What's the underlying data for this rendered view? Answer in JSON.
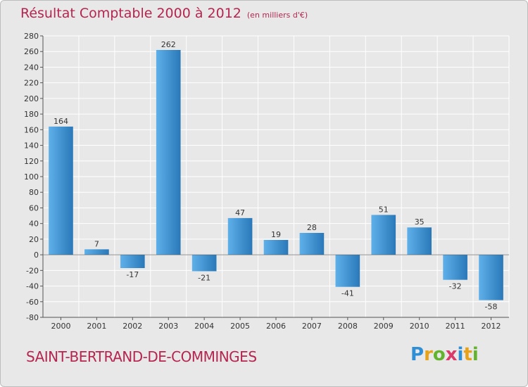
{
  "header": {
    "title": "Résultat Comptable 2000 à 2012",
    "unit": "(en milliers d'€)"
  },
  "footer": {
    "commune": "SAINT-BERTRAND-DE-COMMINGES",
    "logo": [
      "P",
      "r",
      "o",
      "x",
      "i",
      "t",
      "i"
    ],
    "logo_colors": [
      "#2f8fd6",
      "#e7a21a",
      "#62b32e",
      "#d93a6a",
      "#2f8fd6",
      "#e7a21a",
      "#62b32e"
    ]
  },
  "colors": {
    "bar_light": "#5eb0ea",
    "bar_dark": "#2a78b8",
    "axis": "#555555",
    "grid": "#ffffff",
    "title": "#b5254f"
  },
  "chart_data": {
    "type": "bar",
    "categories": [
      "2000",
      "2001",
      "2002",
      "2003",
      "2004",
      "2005",
      "2006",
      "2007",
      "2008",
      "2009",
      "2010",
      "2011",
      "2012"
    ],
    "values": [
      164,
      7,
      -17,
      262,
      -21,
      47,
      19,
      28,
      -41,
      51,
      35,
      -32,
      -58
    ],
    "value_labels": [
      "164",
      "7",
      "-17",
      "262",
      "-21",
      "47",
      "19",
      "28",
      "-41",
      "51",
      "35",
      "-32",
      "-58"
    ],
    "yticks": [
      "-80",
      "-60",
      "-40",
      "-20",
      "0",
      "20",
      "40",
      "60",
      "80",
      "100",
      "120",
      "140",
      "160",
      "180",
      "200",
      "220",
      "240",
      "260",
      "280"
    ],
    "ylim": [
      -80,
      280
    ],
    "grid": true,
    "title": "Résultat Comptable 2000 à 2012"
  }
}
